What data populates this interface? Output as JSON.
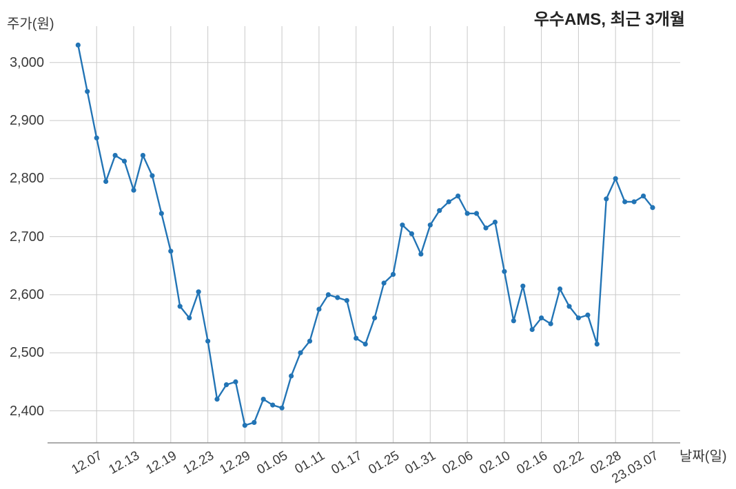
{
  "title": "우수AMS, 최근 3개월",
  "colors": {
    "line": "#2274b5",
    "marker": "#2274b5",
    "grid": "#c9c9c9",
    "axis_line": "#8f8f8f",
    "tick_text": "#3a3a3a",
    "title_text": "#242424",
    "background": "#ffffff"
  },
  "chart_data": {
    "type": "line",
    "title": "우수AMS, 최근 3개월",
    "xlabel": "날짜(일)",
    "ylabel": "주가(원)",
    "grid": true,
    "legend_position": "none",
    "marker": "circle",
    "ylim": [
      2345,
      3055
    ],
    "y_ticks": [
      2400,
      2500,
      2600,
      2700,
      2800,
      2900,
      3000
    ],
    "y_tick_labels": [
      "2,400",
      "2,500",
      "2,600",
      "2,700",
      "2,800",
      "2,900",
      "3,000"
    ],
    "x_tick_labels": [
      "12.07",
      "12.13",
      "12.19",
      "12.23",
      "12.29",
      "01.05",
      "01.11",
      "01.17",
      "01.25",
      "01.31",
      "02.06",
      "02.10",
      "02.16",
      "02.22",
      "02.28",
      "23.03.07"
    ],
    "x_tick_indices": [
      2,
      6,
      10,
      14,
      18,
      22,
      26,
      30,
      34,
      38,
      42,
      46,
      50,
      54,
      58,
      62
    ],
    "x": [
      "12.05",
      "12.06",
      "12.07",
      "12.08",
      "12.09",
      "12.12",
      "12.13",
      "12.14",
      "12.15",
      "12.16",
      "12.19",
      "12.20",
      "12.21",
      "12.22",
      "12.23",
      "12.26",
      "12.27",
      "12.28",
      "12.29",
      "01.02",
      "01.03",
      "01.04",
      "01.05",
      "01.06",
      "01.09",
      "01.10",
      "01.11",
      "01.12",
      "01.13",
      "01.16",
      "01.17",
      "01.18",
      "01.19",
      "01.20",
      "01.25",
      "01.26",
      "01.27",
      "01.30",
      "01.31",
      "02.01",
      "02.02",
      "02.03",
      "02.06",
      "02.07",
      "02.08",
      "02.09",
      "02.10",
      "02.13",
      "02.14",
      "02.15",
      "02.16",
      "02.17",
      "02.20",
      "02.21",
      "02.22",
      "02.23",
      "02.24",
      "02.27",
      "02.28",
      "03.02",
      "03.03",
      "03.06",
      "03.07"
    ],
    "values": [
      3030,
      2950,
      2870,
      2795,
      2840,
      2830,
      2780,
      2840,
      2805,
      2740,
      2675,
      2580,
      2560,
      2605,
      2520,
      2420,
      2445,
      2450,
      2375,
      2380,
      2420,
      2410,
      2405,
      2460,
      2500,
      2520,
      2575,
      2600,
      2595,
      2590,
      2525,
      2515,
      2560,
      2620,
      2635,
      2720,
      2705,
      2670,
      2720,
      2745,
      2760,
      2770,
      2740,
      2740,
      2715,
      2725,
      2640,
      2555,
      2615,
      2540,
      2560,
      2550,
      2610,
      2580,
      2560,
      2565,
      2515,
      2765,
      2800,
      2760,
      2760,
      2770,
      2750
    ]
  }
}
